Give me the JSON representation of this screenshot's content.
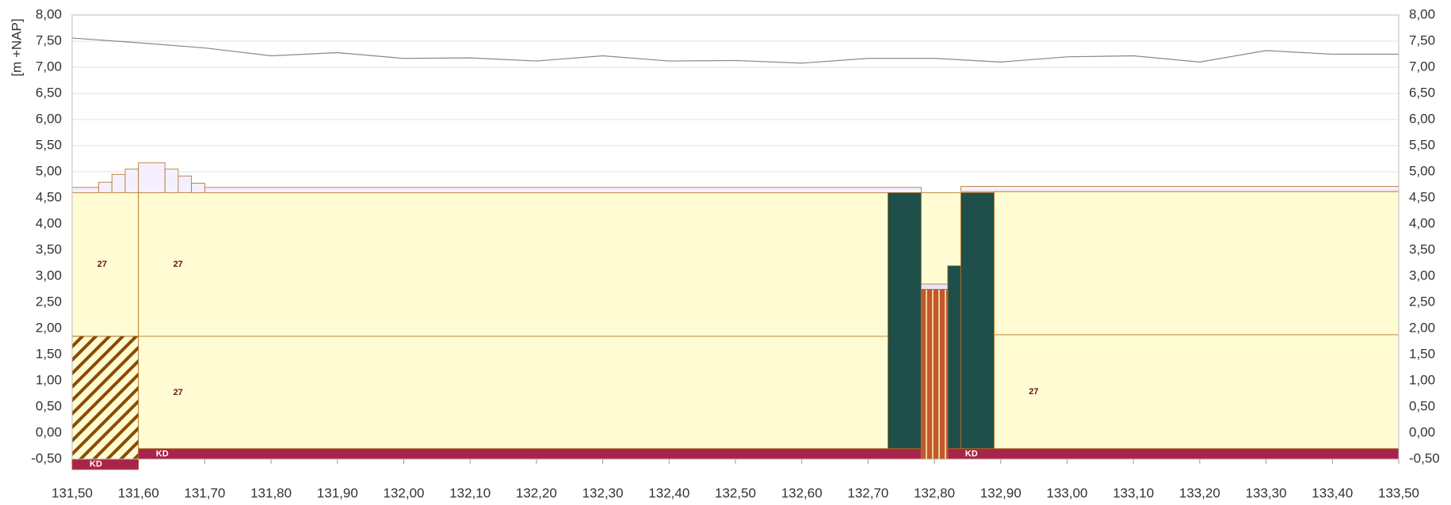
{
  "chart_data": {
    "type": "profile",
    "y_label": "[m +NAP]",
    "xlim": [
      131.5,
      133.5
    ],
    "ylim": [
      -0.5,
      8.0
    ],
    "xticks": [
      {
        "value": 131.5,
        "label": "131,50"
      },
      {
        "value": 131.6,
        "label": "131,60"
      },
      {
        "value": 131.7,
        "label": "131,70"
      },
      {
        "value": 131.8,
        "label": "131,80"
      },
      {
        "value": 131.9,
        "label": "131,90"
      },
      {
        "value": 132.0,
        "label": "132,00"
      },
      {
        "value": 132.1,
        "label": "132,10"
      },
      {
        "value": 132.2,
        "label": "132,20"
      },
      {
        "value": 132.3,
        "label": "132,30"
      },
      {
        "value": 132.4,
        "label": "132,40"
      },
      {
        "value": 132.5,
        "label": "132,50"
      },
      {
        "value": 132.6,
        "label": "132,60"
      },
      {
        "value": 132.7,
        "label": "132,70"
      },
      {
        "value": 132.8,
        "label": "132,80"
      },
      {
        "value": 132.9,
        "label": "132,90"
      },
      {
        "value": 133.0,
        "label": "133,00"
      },
      {
        "value": 133.1,
        "label": "133,10"
      },
      {
        "value": 133.2,
        "label": "133,20"
      },
      {
        "value": 133.3,
        "label": "133,30"
      },
      {
        "value": 133.4,
        "label": "133,40"
      },
      {
        "value": 133.5,
        "label": "133,50"
      }
    ],
    "yticks": [
      {
        "value": -0.5,
        "label": "-0,50"
      },
      {
        "value": 0,
        "label": "0,00"
      },
      {
        "value": 0.5,
        "label": "0,50"
      },
      {
        "value": 1.0,
        "label": "1,00"
      },
      {
        "value": 1.5,
        "label": "1,50"
      },
      {
        "value": 2.0,
        "label": "2,00"
      },
      {
        "value": 2.5,
        "label": "2,50"
      },
      {
        "value": 3.0,
        "label": "3,00"
      },
      {
        "value": 3.5,
        "label": "3,50"
      },
      {
        "value": 4.0,
        "label": "4,00"
      },
      {
        "value": 4.5,
        "label": "4,50"
      },
      {
        "value": 5.0,
        "label": "5,00"
      },
      {
        "value": 5.5,
        "label": "5,50"
      },
      {
        "value": 6.0,
        "label": "6,00"
      },
      {
        "value": 6.5,
        "label": "6,50"
      },
      {
        "value": 7.0,
        "label": "7,00"
      },
      {
        "value": 7.5,
        "label": "7,50"
      },
      {
        "value": 8.0,
        "label": "8,00"
      }
    ],
    "line": {
      "color": "#888888",
      "x": [
        131.5,
        131.6,
        131.7,
        131.8,
        131.9,
        132.0,
        132.1,
        132.2,
        132.3,
        132.4,
        132.5,
        132.6,
        132.7,
        132.8,
        132.9,
        133.0,
        133.1,
        133.2,
        133.3,
        133.4,
        133.5
      ],
      "values": [
        7.56,
        7.47,
        7.37,
        7.22,
        7.28,
        7.17,
        7.18,
        7.12,
        7.22,
        7.12,
        7.13,
        7.08,
        7.17,
        7.17,
        7.1,
        7.2,
        7.22,
        7.1,
        7.32,
        7.25,
        7.25
      ]
    },
    "layers": [
      {
        "x": [
          131.5,
          131.54
        ],
        "y": [
          4.6,
          4.7
        ],
        "color": "#f4f0ff"
      },
      {
        "x": [
          131.54,
          131.56
        ],
        "y": [
          4.6,
          4.8
        ],
        "color": "#f4f0ff"
      },
      {
        "x": [
          131.56,
          131.58
        ],
        "y": [
          4.6,
          4.95
        ],
        "color": "#f4f0ff"
      },
      {
        "x": [
          131.58,
          131.6
        ],
        "y": [
          4.6,
          5.05
        ],
        "color": "#f4f0ff"
      },
      {
        "x": [
          131.6,
          131.64
        ],
        "y": [
          4.6,
          5.17
        ],
        "color": "#f4f0ff"
      },
      {
        "x": [
          131.64,
          131.66
        ],
        "y": [
          4.6,
          5.05
        ],
        "color": "#f4f0ff"
      },
      {
        "x": [
          131.66,
          131.68
        ],
        "y": [
          4.6,
          4.92
        ],
        "color": "#f4f0ff"
      },
      {
        "x": [
          131.68,
          131.7
        ],
        "y": [
          4.6,
          4.78
        ],
        "color": "#f4f0ff"
      },
      {
        "x": [
          131.7,
          132.78
        ],
        "y": [
          4.6,
          4.7
        ],
        "color": "#f4f0ff"
      },
      {
        "x": [
          132.84,
          133.5
        ],
        "y": [
          4.62,
          4.72
        ],
        "color": "#f4f0ff"
      },
      {
        "x": [
          131.5,
          131.6
        ],
        "y": [
          1.85,
          4.6
        ],
        "color": "#fffbd2",
        "label": "27"
      },
      {
        "x": [
          131.5,
          131.6
        ],
        "y": [
          -0.5,
          1.85
        ],
        "color": "#8b4a00",
        "pattern": "hatch"
      },
      {
        "x": [
          131.6,
          132.73
        ],
        "y": [
          1.85,
          4.6
        ],
        "color": "#fffbd2",
        "label": "27"
      },
      {
        "x": [
          131.6,
          132.73
        ],
        "y": [
          -0.3,
          1.85
        ],
        "color": "#fffbd2",
        "label": "27"
      },
      {
        "x": [
          132.78,
          132.84
        ],
        "y": [
          2.75,
          4.6
        ],
        "color": "#fffbd2"
      },
      {
        "x": [
          132.89,
          133.5
        ],
        "y": [
          1.88,
          4.62
        ],
        "color": "#fffbd2"
      },
      {
        "x": [
          132.89,
          133.5
        ],
        "y": [
          -0.3,
          1.88
        ],
        "color": "#fffbd2",
        "label": "27"
      },
      {
        "x": [
          132.73,
          132.78
        ],
        "y": [
          -0.3,
          4.6
        ],
        "color": "#1f4f4a"
      },
      {
        "x": [
          132.82,
          132.84
        ],
        "y": [
          -0.3,
          3.2
        ],
        "color": "#1f4f4a"
      },
      {
        "x": [
          132.84,
          132.89
        ],
        "y": [
          -0.3,
          4.6
        ],
        "color": "#1f4f4a"
      },
      {
        "x": [
          132.78,
          132.82
        ],
        "y": [
          2.75,
          2.85
        ],
        "color": "#e8e4ff"
      },
      {
        "x": [
          132.78,
          132.82
        ],
        "y": [
          -0.5,
          2.75
        ],
        "color": "#c2572e",
        "pattern": "stripes"
      },
      {
        "x": [
          131.5,
          131.6
        ],
        "y": [
          -0.7,
          -0.5
        ],
        "color": "#a8244a",
        "label": "KD"
      },
      {
        "x": [
          131.6,
          132.78
        ],
        "y": [
          -0.5,
          -0.3
        ],
        "color": "#a8244a",
        "label": "KD"
      },
      {
        "x": [
          132.82,
          133.5
        ],
        "y": [
          -0.5,
          -0.3
        ],
        "color": "#a8244a",
        "label": "KD"
      }
    ]
  }
}
